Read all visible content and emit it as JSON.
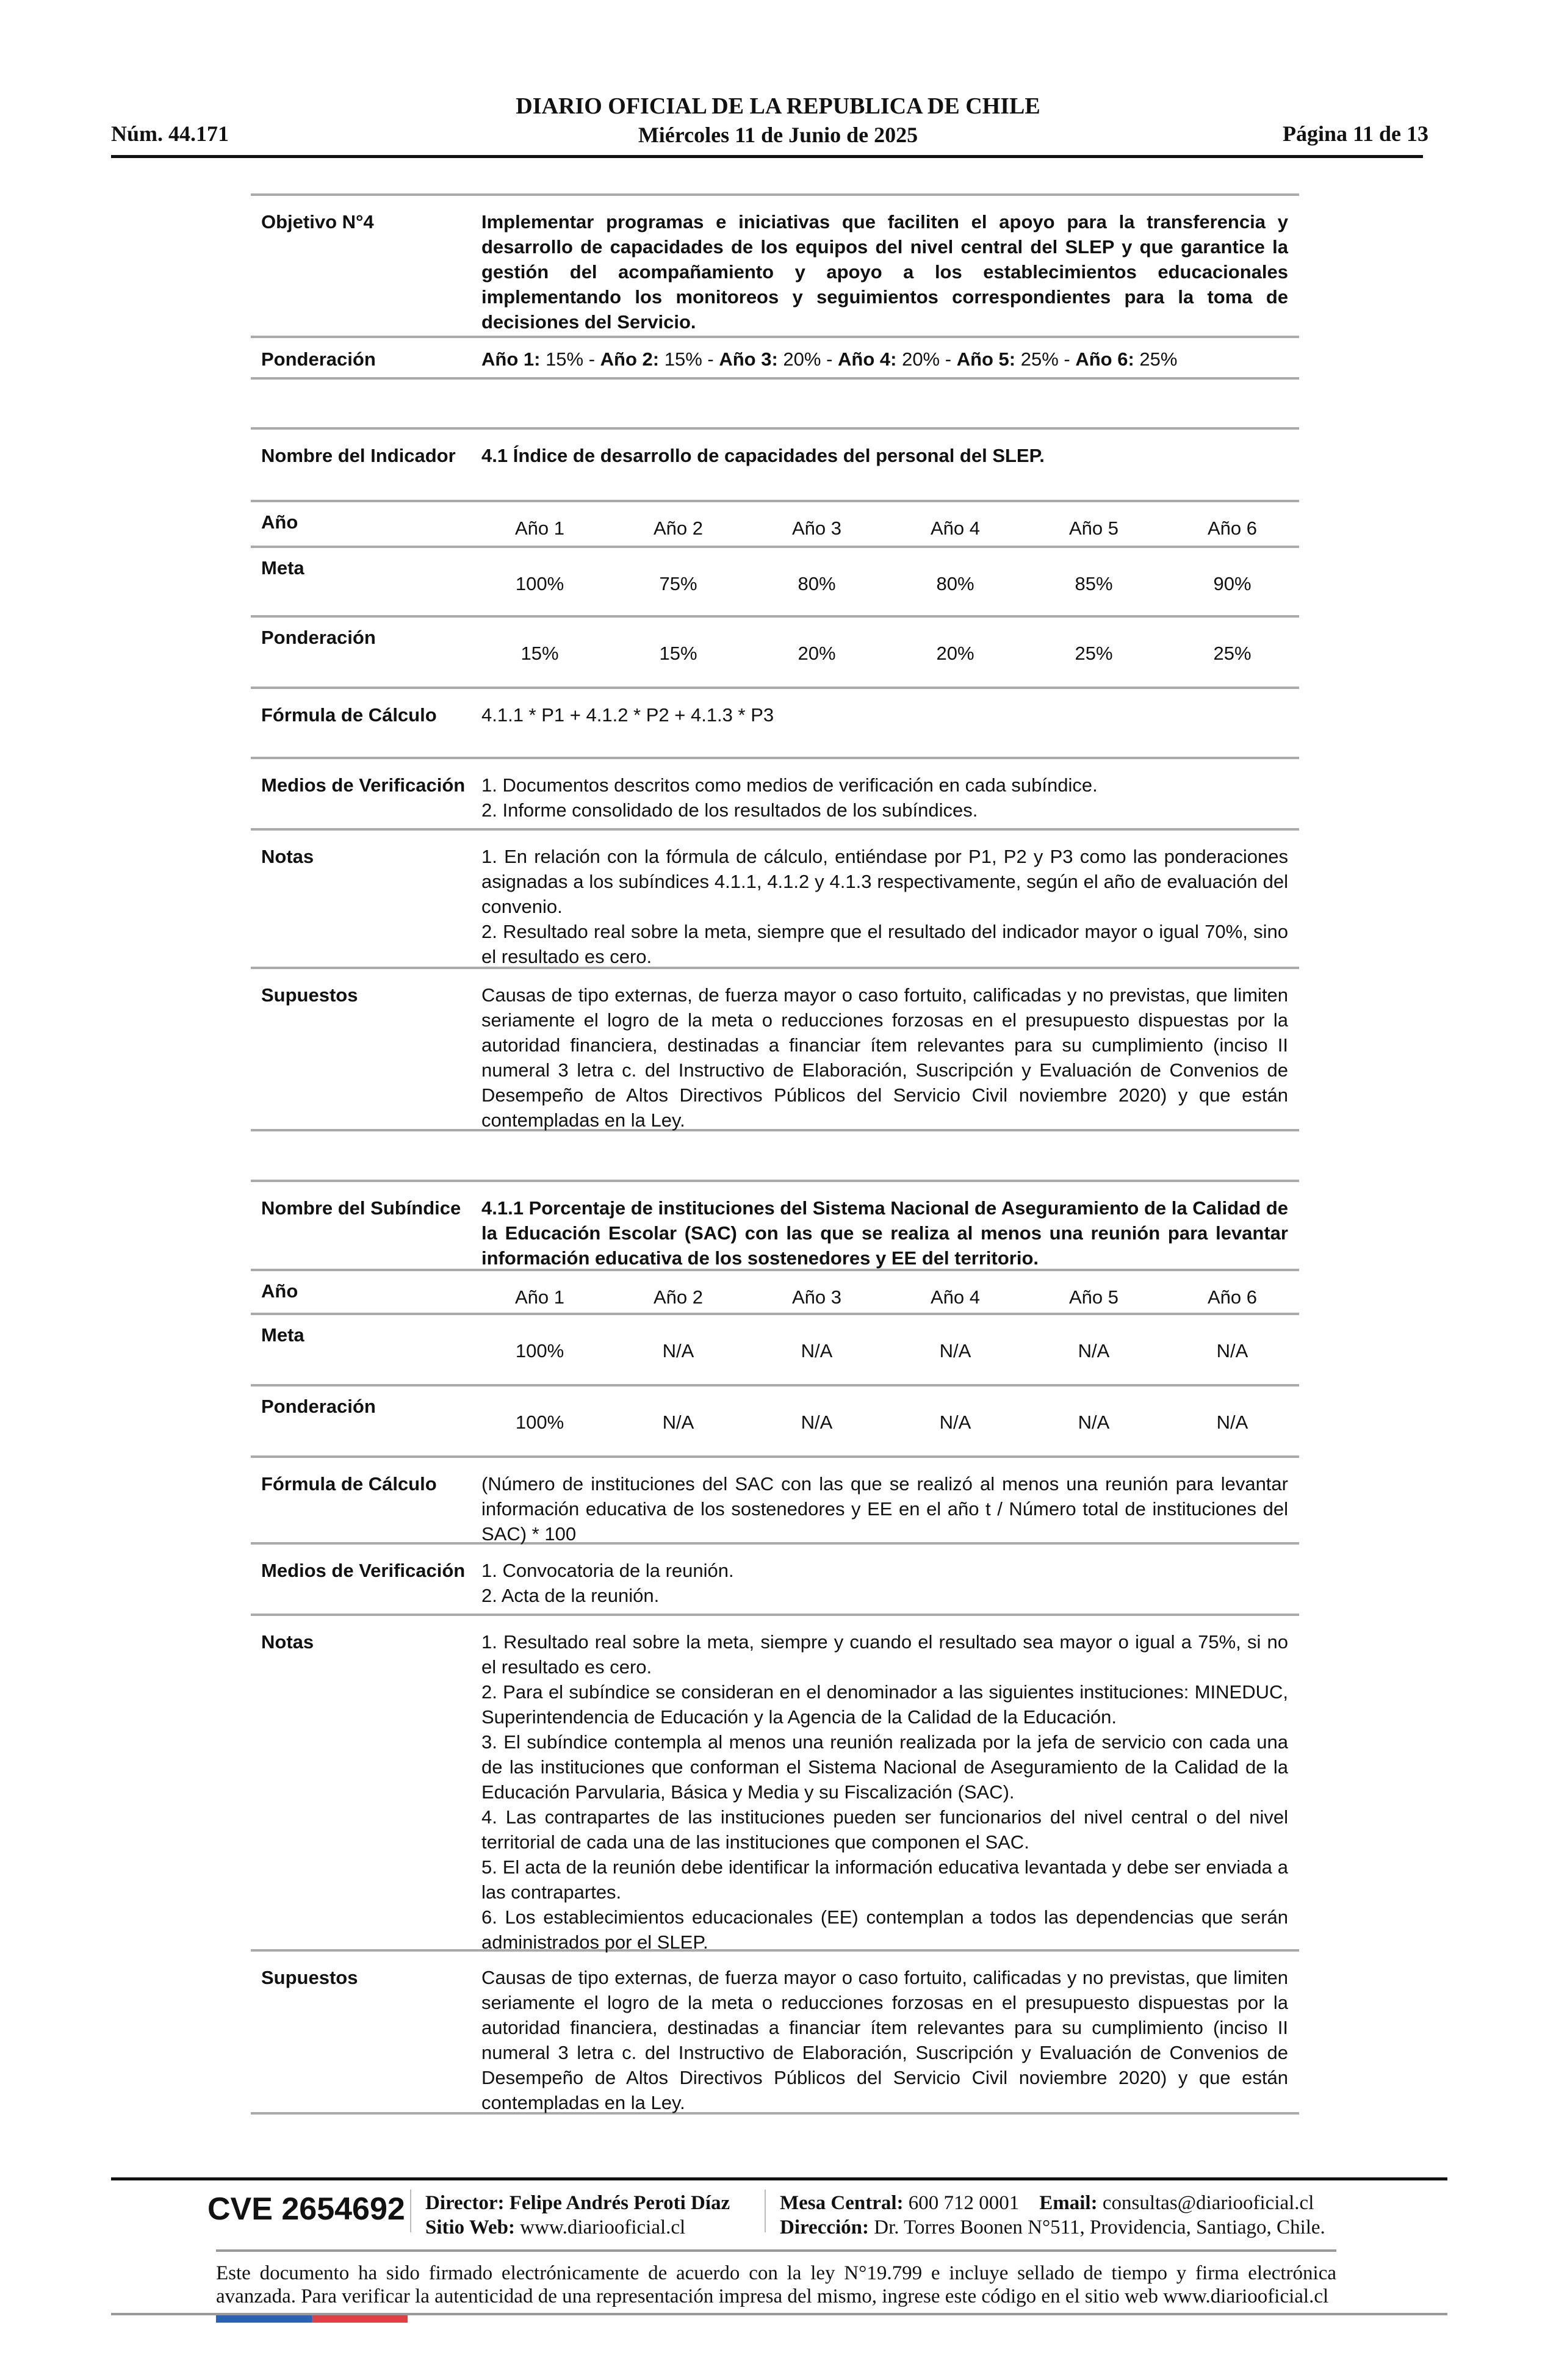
{
  "header": {
    "title": "DIARIO OFICIAL DE LA REPUBLICA DE CHILE",
    "number": "Núm. 44.171",
    "date": "Miércoles 11 de Junio de 2025",
    "page": "Página 11 de 13"
  },
  "objective": {
    "label": "Objetivo N°4",
    "text": "Implementar programas e iniciativas que faciliten el apoyo para la transferencia y desarrollo de capacidades de los equipos del nivel central del SLEP y que garantice la gestión del acompañamiento y apoyo a los establecimientos educacionales implementando los monitoreos y seguimientos correspondientes para la toma de decisiones del Servicio.",
    "weight_label": "Ponderación",
    "weights": [
      {
        "year": "Año 1:",
        "value": "15%"
      },
      {
        "year": "Año 2:",
        "value": "15%"
      },
      {
        "year": "Año 3:",
        "value": "20%"
      },
      {
        "year": "Año 4:",
        "value": "20%"
      },
      {
        "year": "Año 5:",
        "value": "25%"
      },
      {
        "year": "Año 6:",
        "value": "25%"
      }
    ],
    "separator": " - "
  },
  "indicator": {
    "name_label": "Nombre del Indicador",
    "name": "4.1 Índice de desarrollo de capacidades del personal del SLEP.",
    "year_label": "Año",
    "years": [
      "Año 1",
      "Año 2",
      "Año 3",
      "Año 4",
      "Año 5",
      "Año 6"
    ],
    "meta_label": "Meta",
    "meta": [
      "100%",
      "75%",
      "80%",
      "80%",
      "85%",
      "90%"
    ],
    "weight_label": "Ponderación",
    "weights": [
      "15%",
      "15%",
      "20%",
      "20%",
      "25%",
      "25%"
    ],
    "formula_label": "Fórmula de Cálculo",
    "formula": "4.1.1 * P1 + 4.1.2 * P2 + 4.1.3 * P3",
    "verification_label": "Medios de Verificación",
    "verification": [
      "1. Documentos descritos como medios de verificación en cada subíndice.",
      "2. Informe consolidado de los resultados de los subíndices."
    ],
    "notes_label": "Notas",
    "notes": [
      "1. En relación con la fórmula de cálculo, entiéndase por P1, P2 y P3 como las ponderaciones asignadas a los subíndices 4.1.1, 4.1.2 y 4.1.3 respectivamente, según el año de evaluación del convenio.",
      "2. Resultado real sobre la meta, siempre que el resultado del indicador mayor o igual 70%, sino el resultado es cero."
    ],
    "assumptions_label": "Supuestos",
    "assumptions": "Causas de tipo externas, de fuerza mayor o caso fortuito, calificadas y no previstas, que limiten seriamente el logro de la meta o reducciones forzosas en el presupuesto dispuestas por la autoridad financiera, destinadas a financiar ítem relevantes para su cumplimiento (inciso II numeral 3 letra c. del Instructivo de Elaboración, Suscripción y Evaluación de Convenios de Desempeño de Altos Directivos Públicos del Servicio Civil noviembre 2020) y que están contempladas en la Ley."
  },
  "subindex": {
    "name_label": "Nombre del Subíndice",
    "name": "4.1.1 Porcentaje de instituciones del Sistema Nacional de Aseguramiento de la Calidad de la Educación Escolar (SAC) con las que se realiza al menos una reunión para levantar información educativa de los sostenedores y EE del territorio.",
    "year_label": "Año",
    "years": [
      "Año 1",
      "Año 2",
      "Año 3",
      "Año 4",
      "Año 5",
      "Año 6"
    ],
    "meta_label": "Meta",
    "meta": [
      "100%",
      "N/A",
      "N/A",
      "N/A",
      "N/A",
      "N/A"
    ],
    "weight_label": "Ponderación",
    "weights": [
      "100%",
      "N/A",
      "N/A",
      "N/A",
      "N/A",
      "N/A"
    ],
    "formula_label": "Fórmula de Cálculo",
    "formula": "(Número de instituciones del SAC con las que se realizó al menos una reunión para levantar información educativa de los sostenedores y EE en el año t / Número total de instituciones del SAC) * 100",
    "verification_label": "Medios de Verificación",
    "verification": [
      "1. Convocatoria de la reunión.",
      "2. Acta de la reunión."
    ],
    "notes_label": "Notas",
    "notes": [
      "1. Resultado real sobre la meta, siempre y cuando el resultado sea mayor o igual a 75%, si no el resultado es cero.",
      "2. Para el subíndice se consideran en el denominador a las siguientes instituciones: MINEDUC, Superintendencia de Educación y la Agencia de la Calidad de la Educación.",
      "3. El subíndice contempla al menos una reunión realizada por la jefa de servicio con cada una de las instituciones que conforman el Sistema Nacional de Aseguramiento de la Calidad de la Educación Parvularia, Básica y Media y su Fiscalización (SAC).",
      "4. Las contrapartes de las instituciones pueden ser funcionarios del nivel central o del nivel territorial de cada una de las instituciones que componen el SAC.",
      "5. El acta de la reunión debe identificar la información educativa levantada y debe ser enviada a las contrapartes.",
      "6. Los establecimientos educacionales (EE) contemplan a todos las dependencias que serán administrados por el SLEP."
    ],
    "assumptions_label": "Supuestos",
    "assumptions": "Causas de tipo externas, de fuerza mayor o caso fortuito, calificadas y no previstas, que limiten seriamente el logro de la meta o reducciones forzosas en el presupuesto dispuestas por la autoridad financiera, destinadas a financiar ítem relevantes para su cumplimiento (inciso II numeral 3 letra c. del Instructivo de Elaboración, Suscripción y Evaluación de Convenios de Desempeño de Altos Directivos Públicos del Servicio Civil noviembre 2020) y que están contempladas en la Ley."
  },
  "footer": {
    "cve": "CVE 2654692",
    "director_label": "Director:",
    "director": "Felipe Andrés Peroti Díaz",
    "website_label": "Sitio Web:",
    "website": "www.diariooficial.cl",
    "phone_label": "Mesa Central:",
    "phone": "600 712 0001",
    "email_label": "Email:",
    "email": "consultas@diariooficial.cl",
    "address_label": "Dirección:",
    "address": "Dr. Torres Boonen N°511, Providencia, Santiago, Chile.",
    "disclaimer": "Este documento ha sido firmado electrónicamente de acuerdo con la ley N°19.799 e incluye sellado de tiempo y firma electrónica avanzada. Para verificar la autenticidad de una representación impresa del mismo, ingrese este código en el sitio web www.diariooficial.cl",
    "flag_colors": [
      "#2a63b4",
      "#e04045"
    ]
  }
}
